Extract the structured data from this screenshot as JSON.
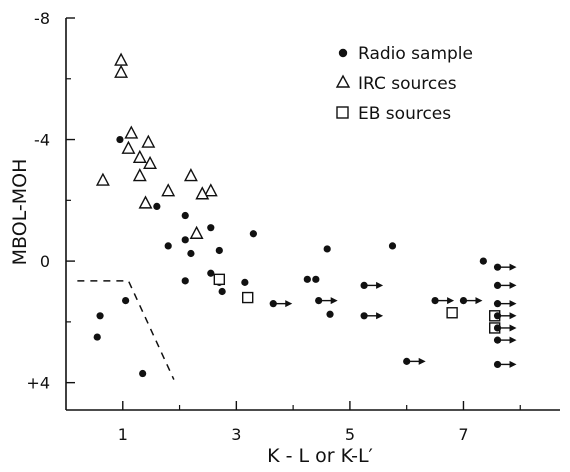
{
  "chart_data": {
    "type": "scatter",
    "xlabel": "K - L or K-L′",
    "ylabel": "MBOL-MOH",
    "xlim": [
      0,
      8.7
    ],
    "ylim": [
      4.9,
      -8
    ],
    "y_inverted": true,
    "x_ticks": [
      1,
      3,
      5,
      7
    ],
    "x_tick_labels": [
      "1",
      "3",
      "5",
      "7"
    ],
    "x_minor_ticks": [
      2,
      4,
      6,
      8
    ],
    "y_ticks": [
      -8,
      -4,
      0,
      4
    ],
    "y_tick_labels": [
      "-8",
      "-4",
      "0",
      "+4"
    ],
    "y_minor_ticks": [
      -6,
      -2,
      2
    ],
    "legend": {
      "placement": "top-right",
      "entries": [
        {
          "label": "Radio sample",
          "marker": "filled-circle"
        },
        {
          "label": "IRC sources",
          "marker": "open-triangle"
        },
        {
          "label": "EB sources",
          "marker": "open-square"
        }
      ]
    },
    "series": [
      {
        "name": "Radio sample",
        "marker": "filled-circle",
        "points": [
          {
            "x": 0.95,
            "y": -4.0
          },
          {
            "x": 1.6,
            "y": -1.8
          },
          {
            "x": 1.8,
            "y": -0.5
          },
          {
            "x": 2.1,
            "y": -1.5
          },
          {
            "x": 2.55,
            "y": -1.1
          },
          {
            "x": 2.1,
            "y": -0.7
          },
          {
            "x": 2.2,
            "y": -0.25
          },
          {
            "x": 2.7,
            "y": -0.35
          },
          {
            "x": 3.3,
            "y": -0.9
          },
          {
            "x": 2.1,
            "y": 0.65
          },
          {
            "x": 2.55,
            "y": 0.4
          },
          {
            "x": 2.7,
            "y": 0.7
          },
          {
            "x": 2.75,
            "y": 1.0
          },
          {
            "x": 3.15,
            "y": 0.7
          },
          {
            "x": 1.05,
            "y": 1.3
          },
          {
            "x": 0.6,
            "y": 1.8
          },
          {
            "x": 0.55,
            "y": 2.5
          },
          {
            "x": 1.35,
            "y": 3.7
          },
          {
            "x": 4.25,
            "y": 0.6
          },
          {
            "x": 4.4,
            "y": 0.6
          },
          {
            "x": 4.6,
            "y": -0.4
          },
          {
            "x": 4.65,
            "y": 1.75
          },
          {
            "x": 5.75,
            "y": -0.5
          },
          {
            "x": 7.35,
            "y": 0.0
          }
        ]
      },
      {
        "name": "IRC sources",
        "marker": "open-triangle",
        "points": [
          {
            "x": 0.97,
            "y": -6.6
          },
          {
            "x": 0.97,
            "y": -6.2
          },
          {
            "x": 1.15,
            "y": -4.2
          },
          {
            "x": 1.1,
            "y": -3.7
          },
          {
            "x": 1.45,
            "y": -3.9
          },
          {
            "x": 1.3,
            "y": -3.4
          },
          {
            "x": 1.48,
            "y": -3.2
          },
          {
            "x": 0.65,
            "y": -2.65
          },
          {
            "x": 1.3,
            "y": -2.8
          },
          {
            "x": 2.2,
            "y": -2.8
          },
          {
            "x": 1.8,
            "y": -2.3
          },
          {
            "x": 2.55,
            "y": -2.3
          },
          {
            "x": 2.4,
            "y": -2.2
          },
          {
            "x": 1.4,
            "y": -1.9
          },
          {
            "x": 2.3,
            "y": -0.9
          }
        ]
      },
      {
        "name": "EB sources",
        "marker": "open-square",
        "points": [
          {
            "x": 2.7,
            "y": 0.6
          },
          {
            "x": 3.2,
            "y": 1.2
          },
          {
            "x": 6.8,
            "y": 1.7
          },
          {
            "x": 7.55,
            "y": 1.8
          },
          {
            "x": 7.55,
            "y": 2.2
          }
        ]
      },
      {
        "name": "",
        "marker": "filled-circle-arrow-right",
        "points": [
          {
            "x": 3.65,
            "y": 1.4
          },
          {
            "x": 4.45,
            "y": 1.3
          },
          {
            "x": 5.25,
            "y": 0.8
          },
          {
            "x": 5.25,
            "y": 1.8
          },
          {
            "x": 6.0,
            "y": 3.3
          },
          {
            "x": 6.5,
            "y": 1.3
          },
          {
            "x": 7.0,
            "y": 1.3
          },
          {
            "x": 7.6,
            "y": 0.2
          },
          {
            "x": 7.6,
            "y": 0.8
          },
          {
            "x": 7.6,
            "y": 1.4
          },
          {
            "x": 7.6,
            "y": 1.8
          },
          {
            "x": 7.6,
            "y": 2.2
          },
          {
            "x": 7.6,
            "y": 2.6
          },
          {
            "x": 7.6,
            "y": 3.4
          }
        ]
      }
    ],
    "reference_line": {
      "style": "dashed",
      "points": [
        {
          "x": 0.2,
          "y": 0.65
        },
        {
          "x": 1.1,
          "y": 0.65
        },
        {
          "x": 1.9,
          "y": 3.9
        }
      ]
    }
  }
}
